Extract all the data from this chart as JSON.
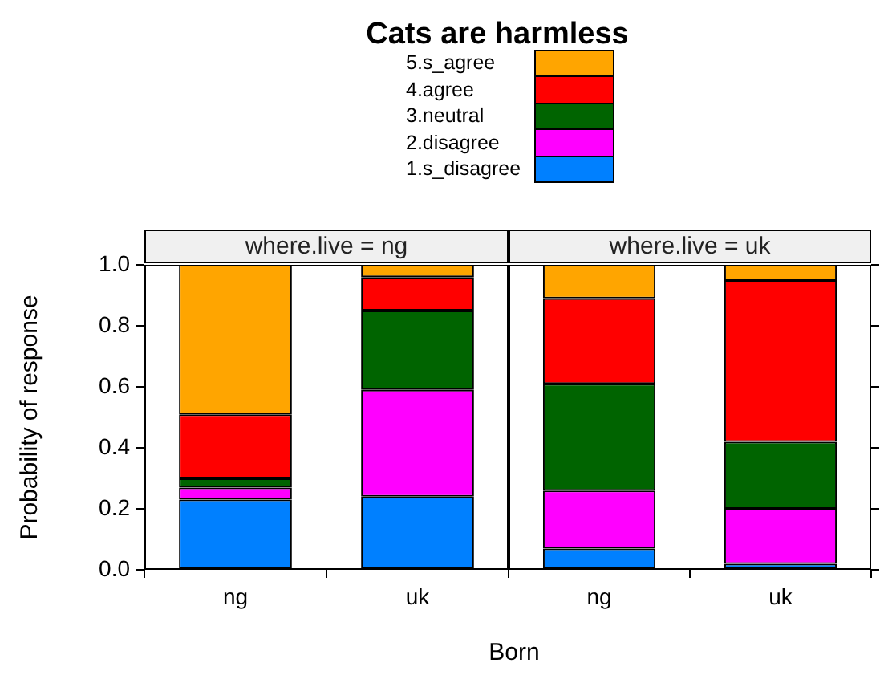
{
  "chart_data": [
    {
      "type": "bar",
      "title": "Cats are harmless",
      "subtitle": "where.live = ng",
      "xlabel": "Born",
      "ylabel": "Probability of response",
      "stacked": true,
      "categories": [
        "ng",
        "uk"
      ],
      "ylim": [
        0,
        1
      ],
      "yticks": [
        {
          "value": 0,
          "label": "0.0"
        },
        {
          "value": 0.2,
          "label": "0.2"
        },
        {
          "value": 0.4,
          "label": "0.4"
        },
        {
          "value": 0.6,
          "label": "0.6"
        },
        {
          "value": 0.8,
          "label": "0.8"
        },
        {
          "value": 1,
          "label": "1.0"
        }
      ],
      "grid": false,
      "legend": "top",
      "series": [
        {
          "name": "1.s_disagree",
          "color": "#0080ff",
          "values": [
            0.23,
            0.24
          ]
        },
        {
          "name": "2.disagree",
          "color": "#ff00ff",
          "values": [
            0.04,
            0.35
          ]
        },
        {
          "name": "3.neutral",
          "color": "#006400",
          "values": [
            0.03,
            0.26
          ]
        },
        {
          "name": "4.agree",
          "color": "#ff0000",
          "values": [
            0.21,
            0.11
          ]
        },
        {
          "name": "5.s_agree",
          "color": "#ffa500",
          "values": [
            0.49,
            0.04
          ]
        }
      ]
    },
    {
      "type": "bar",
      "subtitle": "where.live = uk",
      "stacked": true,
      "categories": [
        "ng",
        "uk"
      ],
      "ylim": [
        0,
        1
      ],
      "yticks": [
        {
          "value": 0,
          "label": null
        },
        {
          "value": 0.2,
          "label": null
        },
        {
          "value": 0.4,
          "label": null
        },
        {
          "value": 0.6,
          "label": null
        },
        {
          "value": 0.8,
          "label": null
        },
        {
          "value": 1,
          "label": null
        }
      ],
      "grid": false,
      "tick_labels": "x",
      "series": [
        {
          "color": "#0080ff",
          "values": [
            0.07,
            0.02
          ]
        },
        {
          "color": "#ff00ff",
          "values": [
            0.19,
            0.18
          ]
        },
        {
          "color": "#006400",
          "values": [
            0.35,
            0.22
          ]
        },
        {
          "color": "#ff0000",
          "values": [
            0.28,
            0.53
          ]
        },
        {
          "color": "#ffa500",
          "values": [
            0.11,
            0.05
          ]
        }
      ]
    }
  ]
}
